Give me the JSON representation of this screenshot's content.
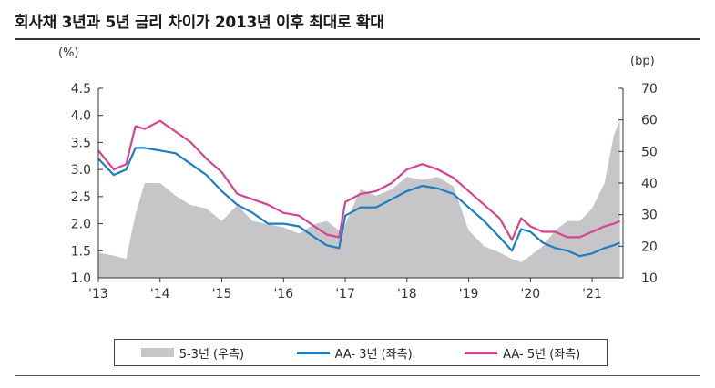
{
  "title": "회사채 3년과 5년 금리 차이가 2013년 이후 최대로 확대",
  "chart_data": {
    "type": "line",
    "title": "회사채 3년과 5년 금리 차이가 2013년 이후 최대로 확대",
    "left_unit": "(%)",
    "right_unit": "(bp)",
    "x_ticks": [
      "'13",
      "'14",
      "'15",
      "'16",
      "'17",
      "'18",
      "'19",
      "'20",
      "'21"
    ],
    "x_tick_positions": [
      2013,
      2014,
      2015,
      2016,
      2017,
      2018,
      2019,
      2020,
      2021
    ],
    "xlim": [
      2013.0,
      2021.5
    ],
    "ylim_left": [
      1.0,
      4.5
    ],
    "ylim_right": [
      10,
      70
    ],
    "y_ticks_left": [
      "1.0",
      "1.5",
      "2.0",
      "2.5",
      "3.0",
      "3.5",
      "4.0",
      "4.5"
    ],
    "y_ticks_right": [
      "10",
      "20",
      "30",
      "40",
      "50",
      "60",
      "70"
    ],
    "grid": false,
    "x": [
      2013.0,
      2013.25,
      2013.45,
      2013.6,
      2013.75,
      2014.0,
      2014.25,
      2014.5,
      2014.75,
      2015.0,
      2015.25,
      2015.5,
      2015.75,
      2016.0,
      2016.25,
      2016.5,
      2016.7,
      2016.9,
      2017.0,
      2017.25,
      2017.5,
      2017.75,
      2018.0,
      2018.25,
      2018.5,
      2018.75,
      2019.0,
      2019.25,
      2019.5,
      2019.7,
      2019.85,
      2020.0,
      2020.2,
      2020.4,
      2020.6,
      2020.8,
      2021.0,
      2021.2,
      2021.35,
      2021.45
    ],
    "series": [
      {
        "name": "5-3년 (우측)",
        "axis": "right",
        "type": "area",
        "color": "#c6c6c9",
        "values": [
          18,
          17,
          16,
          30,
          40,
          40,
          36,
          33,
          32,
          28,
          33,
          28,
          27,
          26,
          24,
          27,
          28,
          25,
          27,
          38,
          36,
          38,
          42,
          41,
          42,
          39,
          25,
          20,
          18,
          16,
          15,
          17,
          20,
          25,
          28,
          28,
          32,
          40,
          55,
          60
        ]
      },
      {
        "name": "AA- 3년 (좌측)",
        "axis": "left",
        "type": "line",
        "color": "#1b7dc4",
        "values": [
          3.2,
          2.9,
          3.0,
          3.4,
          3.4,
          3.35,
          3.3,
          3.1,
          2.9,
          2.6,
          2.35,
          2.2,
          2.0,
          2.0,
          1.95,
          1.75,
          1.6,
          1.55,
          2.15,
          2.3,
          2.3,
          2.45,
          2.6,
          2.7,
          2.65,
          2.55,
          2.3,
          2.05,
          1.75,
          1.5,
          1.9,
          1.85,
          1.65,
          1.55,
          1.5,
          1.4,
          1.45,
          1.55,
          1.6,
          1.65
        ]
      },
      {
        "name": "AA- 5년 (좌측)",
        "axis": "left",
        "type": "line",
        "color": "#d4448f",
        "values": [
          3.35,
          3.0,
          3.1,
          3.8,
          3.75,
          3.9,
          3.7,
          3.5,
          3.2,
          2.95,
          2.55,
          2.45,
          2.35,
          2.2,
          2.15,
          1.95,
          1.8,
          1.75,
          2.4,
          2.55,
          2.6,
          2.75,
          3.0,
          3.1,
          3.0,
          2.85,
          2.6,
          2.35,
          2.1,
          1.7,
          2.1,
          1.95,
          1.85,
          1.85,
          1.75,
          1.75,
          1.85,
          1.95,
          2.0,
          2.05
        ]
      }
    ],
    "legend": {
      "placement": "bottom",
      "items": [
        "5-3년 (우측)",
        "AA- 3년 (좌측)",
        "AA- 5년 (좌측)"
      ]
    }
  }
}
